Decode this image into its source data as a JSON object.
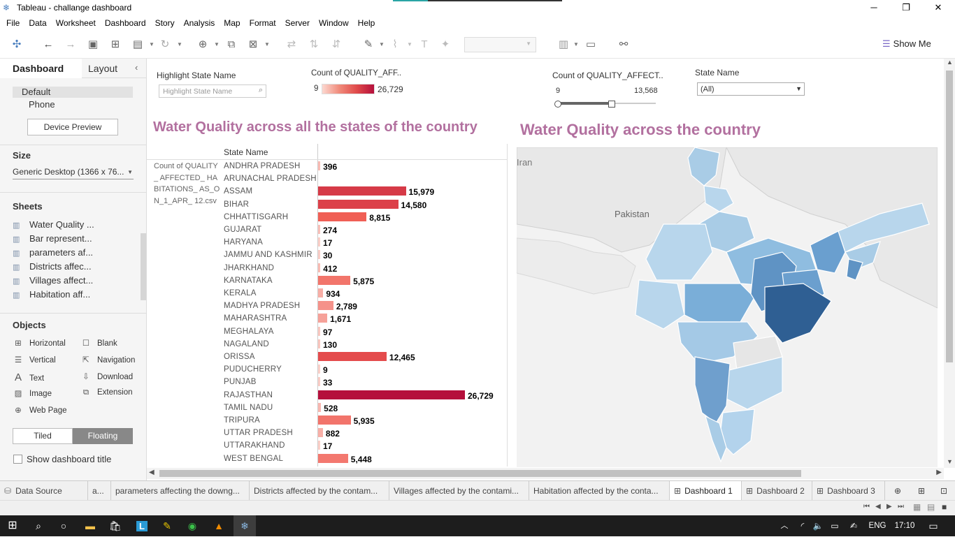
{
  "window": {
    "title": "Tableau - challange dashboard"
  },
  "menu": [
    "File",
    "Data",
    "Worksheet",
    "Dashboard",
    "Story",
    "Analysis",
    "Map",
    "Format",
    "Server",
    "Window",
    "Help"
  ],
  "toolbar": {
    "show_me": "Show Me"
  },
  "left_pane": {
    "tab_dashboard": "Dashboard",
    "tab_layout": "Layout",
    "device_default": "Default",
    "device_phone": "Phone",
    "device_preview": "Device Preview",
    "size_heading": "Size",
    "size_value": "Generic Desktop (1366 x 76...",
    "sheets_heading": "Sheets",
    "sheets": [
      "Water Quality ...",
      "Bar represent...",
      "parameters af...",
      "Districts affec...",
      "Villages affect...",
      "Habitation aff..."
    ],
    "objects_heading": "Objects",
    "objects_left": [
      "Horizontal",
      "Vertical",
      "Text",
      "Image",
      "Web Page"
    ],
    "objects_right": [
      "Blank",
      "Navigation",
      "Download",
      "Extension"
    ],
    "tiled": "Tiled",
    "floating": "Floating",
    "show_title": "Show dashboard title"
  },
  "filters": {
    "highlight_label": "Highlight State Name",
    "highlight_placeholder": "Highlight State Name",
    "count_legend_label": "Count of QUALITY_AFF..",
    "count_legend_min": "9",
    "count_legend_max": "26,729",
    "count_slider_label": "Count of QUALITY_AFFECT..",
    "count_slider_min": "9",
    "count_slider_max": "13,568",
    "state_label": "State Name",
    "state_value": "(All)"
  },
  "bar_chart": {
    "title": "Water Quality across all the states of the country",
    "column_header": "State Name",
    "measure_label": "Count of QUALITY_ AFFECTED_ HABITATIONS_ AS_ON_1_APR_ 12.csv"
  },
  "map_chart": {
    "title": "Water Quality across the country",
    "label_iran": "Iran",
    "label_pakistan": "Pakistan"
  },
  "chart_data": {
    "type": "bar",
    "title": "Water Quality across all the states of the country",
    "categories": [
      "ANDHRA PRADESH",
      "ARUNACHAL PRADESH",
      "ASSAM",
      "BIHAR",
      "CHHATTISGARH",
      "GUJARAT",
      "HARYANA",
      "JAMMU AND KASHMIR",
      "JHARKHAND",
      "KARNATAKA",
      "KERALA",
      "MADHYA PRADESH",
      "MAHARASHTRA",
      "MEGHALAYA",
      "NAGALAND",
      "ORISSA",
      "PUDUCHERRY",
      "PUNJAB",
      "RAJASTHAN",
      "TAMIL NADU",
      "TRIPURA",
      "UTTAR PRADESH",
      "UTTARAKHAND",
      "WEST BENGAL"
    ],
    "values": [
      396,
      null,
      15979,
      14580,
      8815,
      274,
      17,
      30,
      412,
      5875,
      934,
      2789,
      1671,
      97,
      130,
      12465,
      9,
      33,
      26729,
      528,
      5935,
      882,
      17,
      5448
    ],
    "labels": [
      "396",
      "",
      "15,979",
      "14,580",
      "8,815",
      "274",
      "17",
      "30",
      "412",
      "5,875",
      "934",
      "2,789",
      "1,671",
      "97",
      "130",
      "12,465",
      "9",
      "33",
      "26,729",
      "528",
      "5,935",
      "882",
      "17",
      "5,448"
    ],
    "xlim": [
      0,
      26729
    ],
    "color_low": "#fbd4cd",
    "color_high": "#b5103c",
    "orientation": "horizontal"
  },
  "sheet_tabs": {
    "data_source": "Data Source",
    "tab_a": "a...",
    "tab_params": "parameters affecting the downg...",
    "tab_districts": "Districts affected by the contam...",
    "tab_villages": "Villages affected by the contami...",
    "tab_habitation": "Habitation affected by the conta...",
    "dash1": "Dashboard 1",
    "dash2": "Dashboard 2",
    "dash3": "Dashboard 3"
  },
  "taskbar": {
    "lang": "ENG",
    "time": "17:10"
  }
}
